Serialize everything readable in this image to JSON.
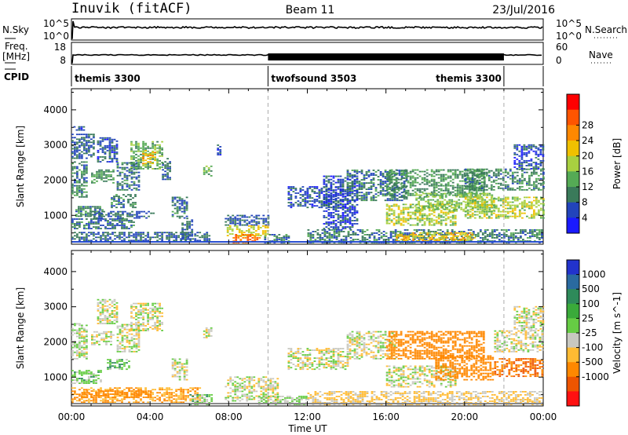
{
  "header": {
    "station": "Inuvik (fitACF)",
    "beam": "Beam 11",
    "date": "23/Jul/2016"
  },
  "panels": {
    "nsky": {
      "label": "N.Sky",
      "tick_top": "10^5",
      "tick_bottom": "10^0",
      "right_top": "10^5",
      "right_bottom": "10^0",
      "right_label": "N.Search"
    },
    "freq": {
      "label_line1": "Freq.",
      "label_line2": "[MHz]",
      "tick_top": "18",
      "tick_bottom": "8",
      "right_top": "60",
      "right_bottom": "0",
      "right_label": "Nave"
    },
    "cpid": {
      "label": "CPID",
      "segments": [
        {
          "name": "themis 3300",
          "start_hour": 0,
          "end_hour": 10
        },
        {
          "name": "twofsound 3503",
          "start_hour": 10,
          "end_hour": 22
        },
        {
          "name": "themis 3300",
          "start_hour": 22,
          "end_hour": 24
        }
      ]
    }
  },
  "chart_data": [
    {
      "type": "heatmap",
      "name": "power",
      "ylabel": "Slant Range [km]",
      "xlabel": "Time UT",
      "xlim_hours": [
        0,
        24
      ],
      "ylim": [
        180,
        4600
      ],
      "yticks": [
        1000,
        2000,
        3000,
        4000
      ],
      "xticks": [
        "00:00",
        "04:00",
        "08:00",
        "12:00",
        "16:00",
        "20:00",
        "00:00"
      ],
      "colorbar": {
        "label": "Power [dB]",
        "ticks": [
          "4",
          "8",
          "12",
          "16",
          "20",
          "24",
          "28"
        ],
        "colors": [
          "#1a1aff",
          "#2244bb",
          "#3a7a5a",
          "#55aa55",
          "#a8d040",
          "#f0c000",
          "#ff8800",
          "#ff5500",
          "#ff0000"
        ]
      },
      "regions": [
        {
          "t0": 0.0,
          "t1": 0.8,
          "r0": 1500,
          "r1": 2500,
          "value": 10
        },
        {
          "t0": 0.0,
          "t1": 1.2,
          "r0": 2600,
          "r1": 3300,
          "value": 8
        },
        {
          "t0": 0.1,
          "t1": 0.6,
          "r0": 3400,
          "r1": 3500,
          "value": 6
        },
        {
          "t0": 1.0,
          "t1": 2.2,
          "r0": 1900,
          "r1": 2300,
          "value": 12
        },
        {
          "t0": 1.3,
          "t1": 2.3,
          "r0": 2500,
          "r1": 3200,
          "value": 7
        },
        {
          "t0": 2.3,
          "t1": 3.4,
          "r0": 1700,
          "r1": 2500,
          "value": 9
        },
        {
          "t0": 3.0,
          "t1": 4.6,
          "r0": 2300,
          "r1": 3100,
          "value": 14
        },
        {
          "t0": 3.6,
          "t1": 4.3,
          "r0": 2450,
          "r1": 2850,
          "value": 22
        },
        {
          "t0": 4.6,
          "t1": 5.0,
          "r0": 2000,
          "r1": 2600,
          "value": 8
        },
        {
          "t0": 0.0,
          "t1": 3.2,
          "r0": 600,
          "r1": 900,
          "value": 9
        },
        {
          "t0": 0.0,
          "t1": 7.0,
          "r0": 260,
          "r1": 500,
          "value": 8
        },
        {
          "t0": 0.2,
          "t1": 1.6,
          "r0": 950,
          "r1": 1250,
          "value": 11
        },
        {
          "t0": 1.0,
          "t1": 4.2,
          "r0": 900,
          "r1": 1100,
          "value": 8
        },
        {
          "t0": 2.0,
          "t1": 3.3,
          "r0": 1200,
          "r1": 1600,
          "value": 10
        },
        {
          "t0": 5.1,
          "t1": 5.9,
          "r0": 900,
          "r1": 1500,
          "value": 9
        },
        {
          "t0": 5.6,
          "t1": 6.1,
          "r0": 300,
          "r1": 900,
          "value": 8
        },
        {
          "t0": 6.7,
          "t1": 7.1,
          "r0": 2100,
          "r1": 2400,
          "value": 14
        },
        {
          "t0": 7.4,
          "t1": 7.6,
          "r0": 2700,
          "r1": 3000,
          "value": 6
        },
        {
          "t0": 7.8,
          "t1": 10.0,
          "r0": 700,
          "r1": 1000,
          "value": 8
        },
        {
          "t0": 7.9,
          "t1": 10.0,
          "r0": 400,
          "r1": 700,
          "value": 20
        },
        {
          "t0": 8.2,
          "t1": 9.6,
          "r0": 200,
          "r1": 450,
          "value": 28
        },
        {
          "t0": 9.8,
          "t1": 11.0,
          "r0": 200,
          "r1": 450,
          "value": 10
        },
        {
          "t0": 11.0,
          "t1": 14.0,
          "r0": 1200,
          "r1": 1800,
          "value": 7
        },
        {
          "t0": 12.8,
          "t1": 14.5,
          "r0": 600,
          "r1": 2100,
          "value": 6
        },
        {
          "t0": 14.0,
          "t1": 17.0,
          "r0": 1400,
          "r1": 2300,
          "value": 9
        },
        {
          "t0": 16.0,
          "t1": 21.0,
          "r0": 1500,
          "r1": 2300,
          "value": 12
        },
        {
          "t0": 16.0,
          "t1": 19.5,
          "r0": 700,
          "r1": 1300,
          "value": 18
        },
        {
          "t0": 17.5,
          "t1": 21.5,
          "r0": 1100,
          "r1": 1600,
          "value": 16
        },
        {
          "t0": 20.0,
          "t1": 24.0,
          "r0": 900,
          "r1": 1500,
          "value": 18
        },
        {
          "t0": 20.0,
          "t1": 24.0,
          "r0": 1700,
          "r1": 2300,
          "value": 11
        },
        {
          "t0": 12.0,
          "t1": 24.0,
          "r0": 200,
          "r1": 600,
          "value": 10
        },
        {
          "t0": 16.5,
          "t1": 20.5,
          "r0": 250,
          "r1": 500,
          "value": 22
        },
        {
          "t0": 22.5,
          "t1": 24.0,
          "r0": 2300,
          "r1": 3000,
          "value": 6
        }
      ]
    },
    {
      "type": "heatmap",
      "name": "velocity",
      "ylabel": "Slant Range [km]",
      "xlabel": "Time UT",
      "xlim_hours": [
        0,
        24
      ],
      "ylim": [
        180,
        4600
      ],
      "yticks": [
        1000,
        2000,
        3000,
        4000
      ],
      "xticks": [
        "00:00",
        "04:00",
        "08:00",
        "12:00",
        "16:00",
        "20:00",
        "00:00"
      ],
      "colorbar": {
        "label": "Velocity [m s^-1]",
        "ticks": [
          "1000",
          "500",
          "100",
          "25",
          "-25",
          "-100",
          "-500",
          "-1000"
        ],
        "colors": [
          "#2233cc",
          "#2a6aa0",
          "#2e8a5a",
          "#3aaa3a",
          "#66cc44",
          "#c8c8c0",
          "#ffbb33",
          "#ff8800",
          "#ee5500",
          "#ff1111"
        ]
      },
      "regions": [
        {
          "t0": 0.0,
          "t1": 0.8,
          "r0": 1500,
          "r1": 2500,
          "value": 25
        },
        {
          "t0": 1.3,
          "t1": 2.3,
          "r0": 2500,
          "r1": 3200,
          "value": 0
        },
        {
          "t0": 2.3,
          "t1": 3.4,
          "r0": 1700,
          "r1": 2500,
          "value": 0
        },
        {
          "t0": 3.0,
          "t1": 4.6,
          "r0": 2300,
          "r1": 3100,
          "value": 0
        },
        {
          "t0": 1.0,
          "t1": 2.2,
          "r0": 1900,
          "r1": 2300,
          "value": 0
        },
        {
          "t0": 0.0,
          "t1": 6.5,
          "r0": 260,
          "r1": 700,
          "value": -100
        },
        {
          "t0": 0.5,
          "t1": 4.0,
          "r0": 400,
          "r1": 600,
          "value": -300
        },
        {
          "t0": 0.0,
          "t1": 1.5,
          "r0": 800,
          "r1": 1200,
          "value": 60
        },
        {
          "t0": 1.8,
          "t1": 3.0,
          "r0": 1200,
          "r1": 1500,
          "value": 80
        },
        {
          "t0": 5.1,
          "t1": 5.9,
          "r0": 900,
          "r1": 1500,
          "value": 0
        },
        {
          "t0": 6.7,
          "t1": 7.1,
          "r0": 2100,
          "r1": 2400,
          "value": 0
        },
        {
          "t0": 7.8,
          "t1": 10.5,
          "r0": 300,
          "r1": 1000,
          "value": 0
        },
        {
          "t0": 6.0,
          "t1": 7.2,
          "r0": 200,
          "r1": 500,
          "value": 60
        },
        {
          "t0": 9.5,
          "t1": 12.0,
          "r0": 200,
          "r1": 450,
          "value": 40
        },
        {
          "t0": 11.0,
          "t1": 14.0,
          "r0": 1200,
          "r1": 1800,
          "value": 0
        },
        {
          "t0": 14.0,
          "t1": 16.5,
          "r0": 1500,
          "r1": 2300,
          "value": 0
        },
        {
          "t0": 16.0,
          "t1": 21.0,
          "r0": 1500,
          "r1": 2300,
          "value": -300
        },
        {
          "t0": 16.0,
          "t1": 19.5,
          "r0": 700,
          "r1": 1300,
          "value": 0
        },
        {
          "t0": 18.5,
          "t1": 21.5,
          "r0": 900,
          "r1": 1600,
          "value": -200
        },
        {
          "t0": 21.5,
          "t1": 24.0,
          "r0": 1000,
          "r1": 1500,
          "value": -500
        },
        {
          "t0": 21.5,
          "t1": 24.0,
          "r0": 1700,
          "r1": 2300,
          "value": 0
        },
        {
          "t0": 12.0,
          "t1": 24.0,
          "r0": 200,
          "r1": 600,
          "value": -40
        },
        {
          "t0": 22.5,
          "t1": 24.0,
          "r0": 2300,
          "r1": 3000,
          "value": 0
        }
      ]
    }
  ]
}
